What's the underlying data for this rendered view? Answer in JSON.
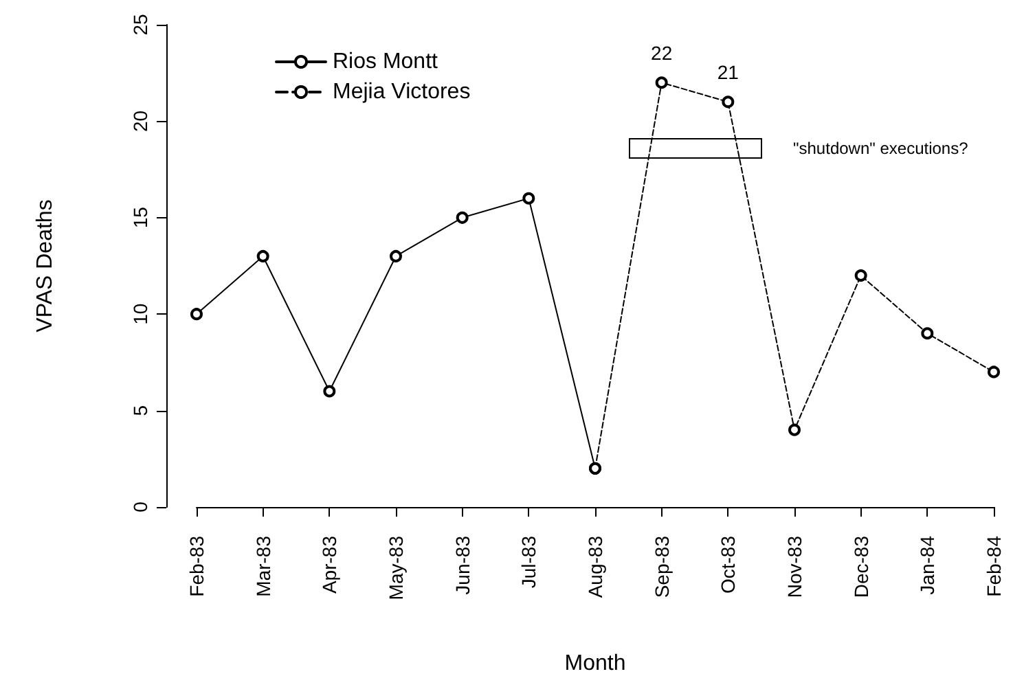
{
  "chart_data": {
    "type": "line",
    "xlabel": "Month",
    "ylabel": "VPAS Deaths",
    "categories": [
      "Feb-83",
      "Mar-83",
      "Apr-83",
      "May-83",
      "Jun-83",
      "Jul-83",
      "Aug-83",
      "Sep-83",
      "Oct-83",
      "Nov-83",
      "Dec-83",
      "Jan-84",
      "Feb-84"
    ],
    "series": [
      {
        "name": "Rios Montt",
        "color": "#000000",
        "line_style": "solid",
        "values": [
          10,
          13,
          6,
          13,
          15,
          16,
          2,
          null,
          null,
          null,
          null,
          null,
          null
        ]
      },
      {
        "name": "Mejia Victores",
        "color": "#000000",
        "line_style": "dashed",
        "values": [
          null,
          null,
          null,
          null,
          null,
          null,
          2,
          22,
          21,
          4,
          12,
          9,
          7
        ],
        "value_labels": [
          null,
          null,
          null,
          null,
          null,
          null,
          null,
          "22",
          "21",
          null,
          null,
          null,
          null
        ]
      }
    ],
    "ylim": [
      0,
      25
    ],
    "yticks": [
      0,
      5,
      10,
      15,
      20,
      25
    ],
    "grid": false,
    "legend": "top left",
    "marker": "circle",
    "annotations": [
      "\"shutdown\" executions?"
    ]
  }
}
